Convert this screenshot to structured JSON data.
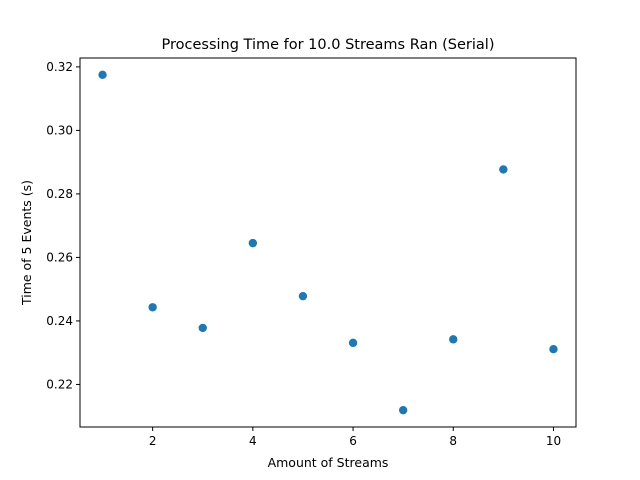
{
  "chart_data": {
    "type": "scatter",
    "title": "Processing Time for 10.0 Streams Ran (Serial)",
    "xlabel": "Amount of Streams",
    "ylabel": "Time of 5 Events (s)",
    "x": [
      1,
      2,
      3,
      4,
      5,
      6,
      7,
      8,
      9,
      10
    ],
    "y": [
      0.3175,
      0.2443,
      0.2378,
      0.2645,
      0.2478,
      0.2331,
      0.2119,
      0.2342,
      0.2877,
      0.2311
    ],
    "xlim": [
      0.55,
      10.45
    ],
    "ylim": [
      0.2066,
      0.3228
    ],
    "xticks": [
      2,
      4,
      6,
      8,
      10
    ],
    "yticks": [
      0.22,
      0.24,
      0.26,
      0.28,
      0.3,
      0.32
    ],
    "xtick_labels": [
      "2",
      "4",
      "6",
      "8",
      "10"
    ],
    "ytick_labels": [
      "0.22",
      "0.24",
      "0.26",
      "0.28",
      "0.30",
      "0.32"
    ],
    "marker_color": "#1f77b4",
    "grid": false,
    "legend": "none"
  }
}
